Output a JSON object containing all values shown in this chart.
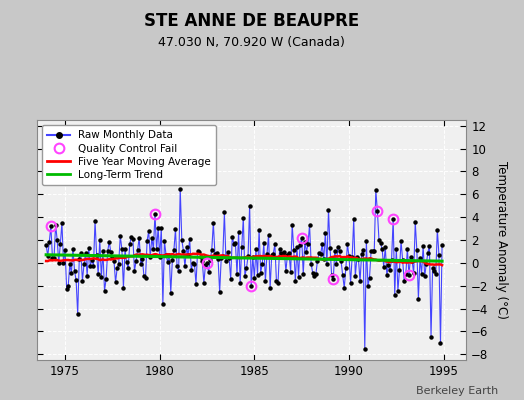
{
  "title": "STE ANNE DE BEAUPRE",
  "subtitle": "47.030 N, 70.920 W (Canada)",
  "ylabel": "Temperature Anomaly (°C)",
  "watermark": "Berkeley Earth",
  "xlim": [
    1973.5,
    1996.2
  ],
  "ylim": [
    -8.5,
    12.5
  ],
  "yticks": [
    -8,
    -6,
    -4,
    -2,
    0,
    2,
    4,
    6,
    8,
    10,
    12
  ],
  "xticks": [
    1975,
    1980,
    1985,
    1990,
    1995
  ],
  "bg_color": "#c8c8c8",
  "plot_bg_color": "#f0f0f0",
  "raw_line_color": "#4444ff",
  "raw_dot_color": "#000000",
  "moving_avg_color": "#ff0000",
  "trend_color": "#00bb00",
  "qc_fail_color": "#ff44ff",
  "grid_color": "#ffffff",
  "seed": 42
}
